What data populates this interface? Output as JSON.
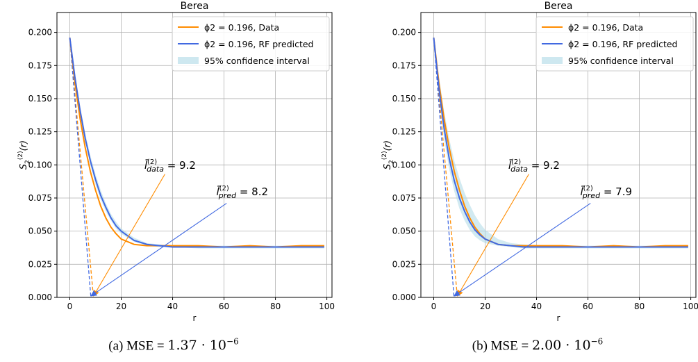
{
  "chart_data": [
    {
      "type": "line",
      "panel": "a",
      "title": "Berea",
      "xlabel": "r",
      "ylabel": "S2(2)(r)",
      "xlim": [
        -5,
        102
      ],
      "ylim": [
        0,
        0.215
      ],
      "xticks": [
        "0",
        "20",
        "40",
        "60",
        "80",
        "100"
      ],
      "xtick_values": [
        0,
        20,
        40,
        60,
        80,
        100
      ],
      "yticks": [
        "0.000",
        "0.025",
        "0.050",
        "0.075",
        "0.100",
        "0.125",
        "0.150",
        "0.175",
        "0.200"
      ],
      "ytick_values": [
        0,
        0.025,
        0.05,
        0.075,
        0.1,
        0.125,
        0.15,
        0.175,
        0.2
      ],
      "grid": true,
      "legend_position": "top-right",
      "series": [
        {
          "name": "ϕ2 = 0.196, Data",
          "color": "#ff8c00",
          "x": [
            0,
            2,
            4,
            6,
            8,
            10,
            12,
            14,
            16,
            18,
            20,
            25,
            30,
            35,
            40,
            50,
            60,
            70,
            80,
            90,
            99
          ],
          "y": [
            0.196,
            0.162,
            0.135,
            0.113,
            0.095,
            0.081,
            0.069,
            0.06,
            0.053,
            0.048,
            0.044,
            0.04,
            0.039,
            0.039,
            0.039,
            0.039,
            0.038,
            0.039,
            0.038,
            0.039,
            0.039
          ]
        },
        {
          "name": "ϕ2 = 0.196, RF predicted",
          "color": "#4169e1",
          "x": [
            0,
            2,
            4,
            6,
            8,
            10,
            12,
            14,
            16,
            18,
            20,
            25,
            30,
            35,
            40,
            50,
            60,
            70,
            80,
            90,
            99
          ],
          "y": [
            0.196,
            0.166,
            0.141,
            0.12,
            0.103,
            0.089,
            0.077,
            0.068,
            0.06,
            0.054,
            0.05,
            0.043,
            0.04,
            0.039,
            0.038,
            0.038,
            0.038,
            0.038,
            0.038,
            0.038,
            0.038
          ]
        }
      ],
      "confidence_band": {
        "name": "95% confidence interval",
        "color": "#add8e6",
        "x": [
          0,
          2,
          4,
          6,
          8,
          10,
          12,
          14,
          16,
          18,
          20,
          25,
          30,
          35,
          40,
          50,
          60,
          70,
          80,
          90,
          99
        ],
        "lower": [
          0.196,
          0.164,
          0.138,
          0.117,
          0.1,
          0.085,
          0.074,
          0.065,
          0.058,
          0.052,
          0.048,
          0.042,
          0.039,
          0.038,
          0.038,
          0.037,
          0.037,
          0.037,
          0.037,
          0.037,
          0.037
        ],
        "upper": [
          0.196,
          0.168,
          0.144,
          0.124,
          0.107,
          0.093,
          0.081,
          0.071,
          0.063,
          0.057,
          0.052,
          0.045,
          0.041,
          0.04,
          0.039,
          0.039,
          0.039,
          0.039,
          0.039,
          0.039,
          0.039
        ]
      },
      "tangent_lines": [
        {
          "color": "#ff8c00",
          "from": [
            0,
            0.196
          ],
          "to": [
            9.2,
            0
          ]
        },
        {
          "color": "#4169e1",
          "from": [
            0,
            0.196
          ],
          "to": [
            8.2,
            0
          ]
        }
      ],
      "annotations": [
        {
          "color": "#ff8c00",
          "symbol": "l̄",
          "sup": "(2)",
          "sub": "data",
          "value_text": " = 9.2",
          "text_at": [
            29,
            0.097
          ],
          "arrow_from": [
            37,
            0.093
          ],
          "arrow_to": [
            9.2,
            0.001
          ]
        },
        {
          "color": "#4169e1",
          "symbol": "l̄",
          "sup": "(2)",
          "sub": "pred",
          "value_text": " = 8.2",
          "text_at": [
            57,
            0.077
          ],
          "arrow_from": [
            61,
            0.071
          ],
          "arrow_to": [
            8.2,
            0.001
          ]
        }
      ],
      "caption": {
        "prefix": "(a) MSE = ",
        "mantissa": "1.37",
        "dot": " · 10",
        "exponent": "−6"
      }
    },
    {
      "type": "line",
      "panel": "b",
      "title": "Berea",
      "xlabel": "r",
      "ylabel": "S2(2)(r)",
      "xlim": [
        -5,
        102
      ],
      "ylim": [
        0,
        0.215
      ],
      "xticks": [
        "0",
        "20",
        "40",
        "60",
        "80",
        "100"
      ],
      "xtick_values": [
        0,
        20,
        40,
        60,
        80,
        100
      ],
      "yticks": [
        "0.000",
        "0.025",
        "0.050",
        "0.075",
        "0.100",
        "0.125",
        "0.150",
        "0.175",
        "0.200"
      ],
      "ytick_values": [
        0,
        0.025,
        0.05,
        0.075,
        0.1,
        0.125,
        0.15,
        0.175,
        0.2
      ],
      "grid": true,
      "legend_position": "top-right",
      "series": [
        {
          "name": "ϕ2 = 0.196, Data",
          "color": "#ff8c00",
          "x": [
            0,
            2,
            4,
            6,
            8,
            10,
            12,
            14,
            16,
            18,
            20,
            25,
            30,
            35,
            40,
            50,
            60,
            70,
            80,
            90,
            99
          ],
          "y": [
            0.196,
            0.162,
            0.135,
            0.113,
            0.095,
            0.081,
            0.069,
            0.06,
            0.053,
            0.048,
            0.044,
            0.04,
            0.039,
            0.039,
            0.039,
            0.039,
            0.038,
            0.039,
            0.038,
            0.039,
            0.039
          ]
        },
        {
          "name": "ϕ2 = 0.196, RF predicted",
          "color": "#4169e1",
          "x": [
            0,
            2,
            4,
            6,
            8,
            10,
            12,
            14,
            16,
            18,
            20,
            25,
            30,
            35,
            40,
            50,
            60,
            70,
            80,
            90,
            99
          ],
          "y": [
            0.196,
            0.158,
            0.128,
            0.105,
            0.088,
            0.075,
            0.065,
            0.057,
            0.051,
            0.047,
            0.044,
            0.04,
            0.039,
            0.038,
            0.038,
            0.038,
            0.038,
            0.038,
            0.038,
            0.038,
            0.038
          ]
        }
      ],
      "confidence_band": {
        "name": "95% confidence interval",
        "color": "#add8e6",
        "x": [
          0,
          2,
          4,
          6,
          8,
          10,
          12,
          14,
          16,
          18,
          20,
          25,
          30,
          35,
          40,
          50,
          60,
          70,
          80,
          90,
          99
        ],
        "lower": [
          0.196,
          0.152,
          0.12,
          0.097,
          0.08,
          0.067,
          0.058,
          0.051,
          0.046,
          0.043,
          0.041,
          0.039,
          0.038,
          0.037,
          0.037,
          0.037,
          0.037,
          0.037,
          0.037,
          0.037,
          0.037
        ],
        "upper": [
          0.196,
          0.167,
          0.141,
          0.12,
          0.103,
          0.09,
          0.079,
          0.07,
          0.062,
          0.056,
          0.051,
          0.044,
          0.041,
          0.04,
          0.039,
          0.039,
          0.039,
          0.039,
          0.039,
          0.039,
          0.039
        ]
      },
      "tangent_lines": [
        {
          "color": "#ff8c00",
          "from": [
            0,
            0.196
          ],
          "to": [
            9.2,
            0
          ]
        },
        {
          "color": "#4169e1",
          "from": [
            0,
            0.196
          ],
          "to": [
            7.9,
            0
          ]
        }
      ],
      "annotations": [
        {
          "color": "#ff8c00",
          "symbol": "l̄",
          "sup": "(2)",
          "sub": "data",
          "value_text": " = 9.2",
          "text_at": [
            29,
            0.097
          ],
          "arrow_from": [
            37,
            0.093
          ],
          "arrow_to": [
            9.2,
            0.001
          ]
        },
        {
          "color": "#4169e1",
          "symbol": "l̄",
          "sup": "(2)",
          "sub": "pred",
          "value_text": " = 7.9",
          "text_at": [
            57,
            0.077
          ],
          "arrow_from": [
            61,
            0.071
          ],
          "arrow_to": [
            7.9,
            0.001
          ]
        }
      ],
      "caption": {
        "prefix": "(b) MSE = ",
        "mantissa": "2.00",
        "dot": " · 10",
        "exponent": "−6"
      }
    }
  ]
}
